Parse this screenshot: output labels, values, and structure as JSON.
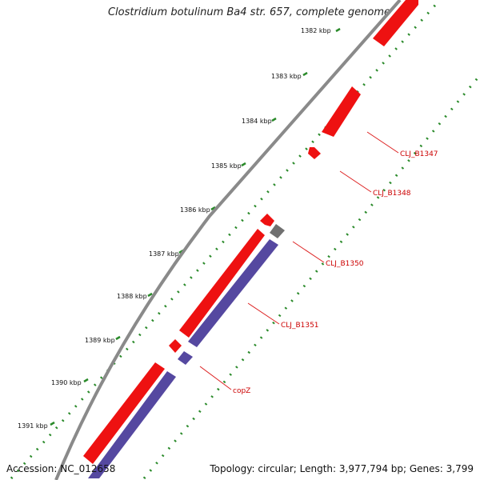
{
  "title": "Clostridium botulinum Ba4 str. 657, complete genome",
  "footer": {
    "accession": "Accession: NC_012658",
    "stats": "Topology: circular; Length: 3,977,794 bp; Genes: 3,799"
  },
  "ticks": [
    "1382 kbp",
    "1383 kbp",
    "1384 kbp",
    "1385 kbp",
    "1386 kbp",
    "1387 kbp",
    "1388 kbp",
    "1389 kbp",
    "1390 kbp",
    "1391 kbp"
  ],
  "gene_labels": [
    "CLJ_B1347",
    "CLJ_B1348",
    "CLJ_B1350",
    "CLJ_B1351",
    "copZ"
  ],
  "colors": {
    "backbone": "#8a8a8a",
    "forward_gene": "#ee1111",
    "reverse_gene": "#5548a0",
    "other_feature": "#707070",
    "scale_marks": "#2a8a2a",
    "label_line": "#dd2222",
    "label_text": "#cc0000"
  }
}
